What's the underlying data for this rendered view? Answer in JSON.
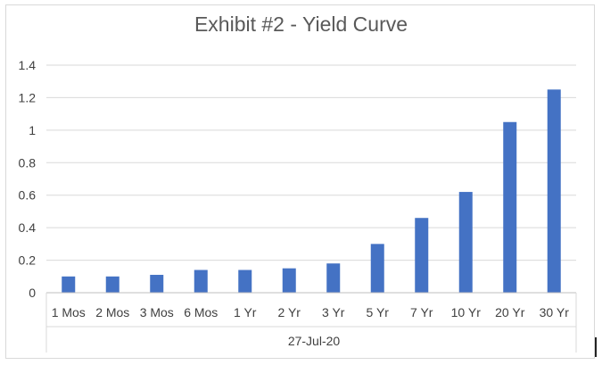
{
  "chart_data": {
    "type": "bar",
    "title": "Exhibit #2 - Yield Curve",
    "xlabel": "27-Jul-20",
    "ylabel": "",
    "categories": [
      "1 Mos",
      "2 Mos",
      "3 Mos",
      "6 Mos",
      "1 Yr",
      "2 Yr",
      "3 Yr",
      "5 Yr",
      "7 Yr",
      "10 Yr",
      "20 Yr",
      "30 Yr"
    ],
    "values": [
      0.1,
      0.1,
      0.11,
      0.14,
      0.14,
      0.15,
      0.18,
      0.3,
      0.46,
      0.62,
      1.05,
      1.25
    ],
    "ylim": [
      0,
      1.4
    ],
    "yticks": [
      "0",
      "0.2",
      "0.4",
      "0.6",
      "0.8",
      "1",
      "1.2",
      "1.4"
    ],
    "grid": true,
    "legend": "none",
    "bar_color": "#4472c4"
  }
}
